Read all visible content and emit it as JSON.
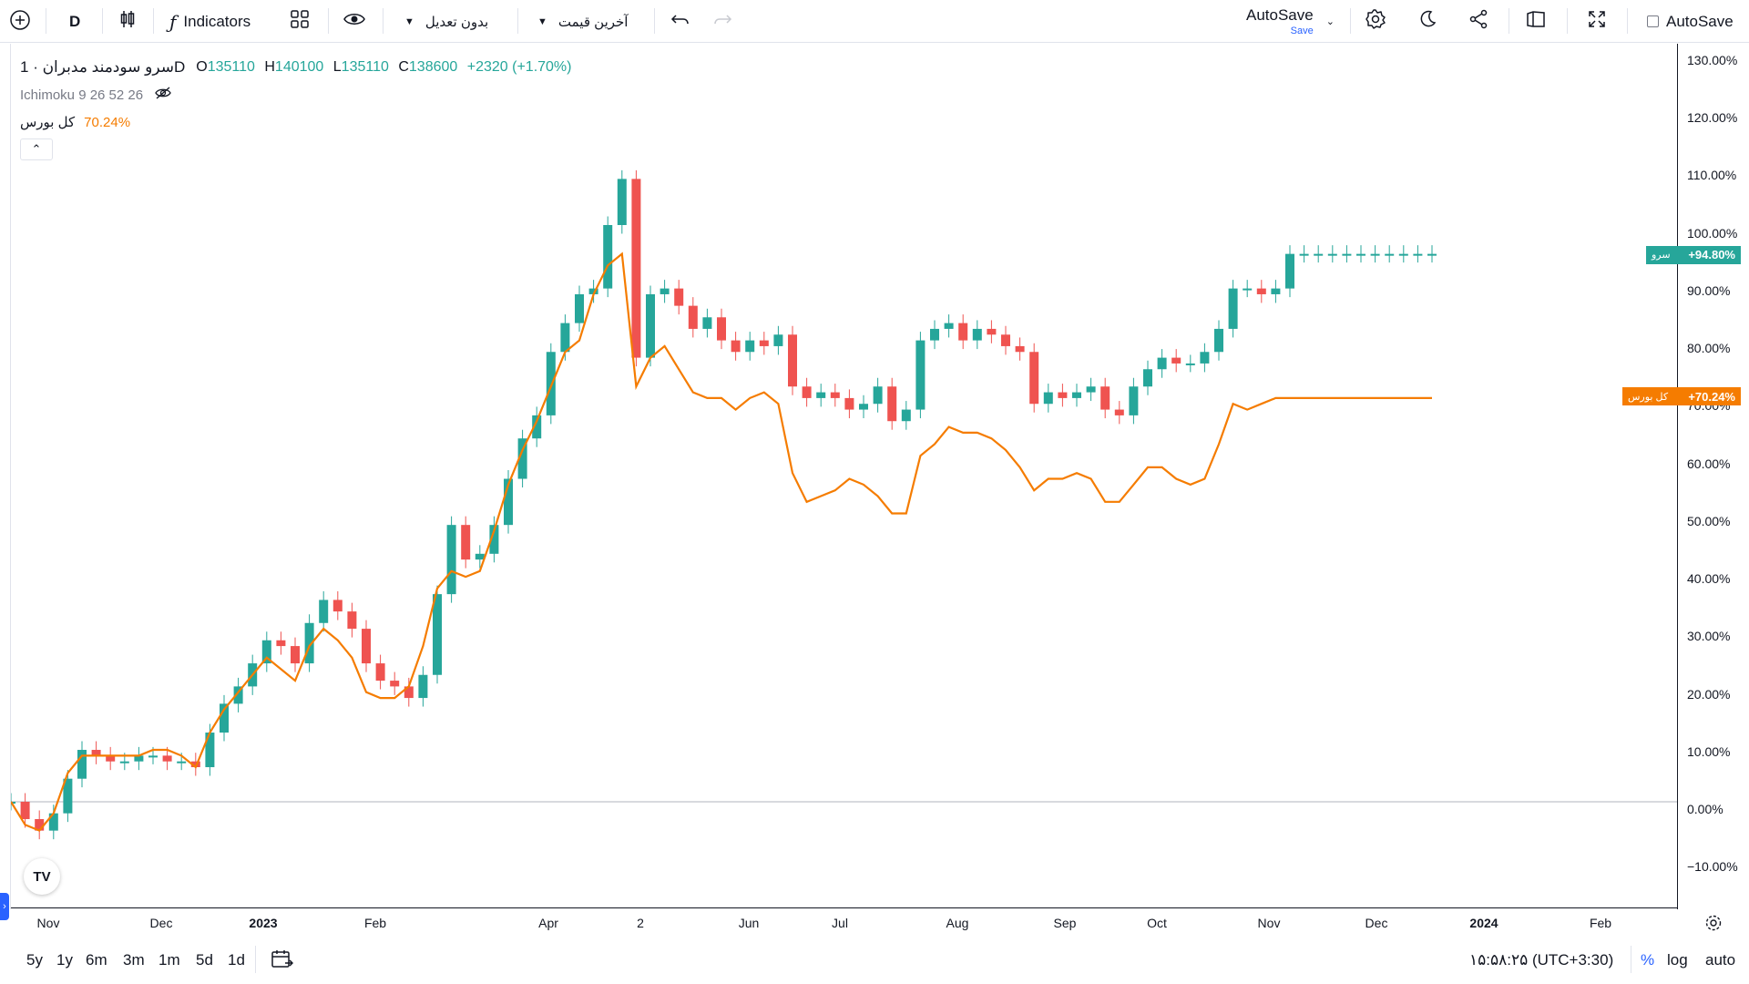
{
  "toolbar": {
    "interval": "D",
    "indicators_label": "Indicators",
    "adjustment_dropdown": "بدون تعدیل",
    "price_type_dropdown": "آخرین قیمت",
    "autosave_title": "AutoSave",
    "autosave_sub": "Save",
    "autosave_checkbox_label": "AutoSave"
  },
  "legend": {
    "symbol": "سرو سودمند مدبران · 1D",
    "open_label": "O",
    "open": "135110",
    "high_label": "H",
    "high": "140100",
    "low_label": "L",
    "low": "135110",
    "close_label": "C",
    "close": "138600",
    "change": "+2320 (+1.70%)",
    "indicator": "Ichimoku 9 26 52 26",
    "compare_label": "کل بورس",
    "compare_value": "70.24%"
  },
  "chart_data": {
    "type": "line",
    "title": "",
    "y_scale": "percent",
    "ylim": [
      -13,
      131
    ],
    "y_ticks": [
      "130.00%",
      "120.00%",
      "110.00%",
      "100.00%",
      "90.00%",
      "80.00%",
      "70.00%",
      "60.00%",
      "50.00%",
      "40.00%",
      "30.00%",
      "20.00%",
      "10.00%",
      "0.00%",
      "−10.00%"
    ],
    "y_tick_values": [
      130,
      120,
      110,
      100,
      90,
      80,
      70,
      60,
      50,
      40,
      30,
      20,
      10,
      0,
      -10
    ],
    "x_ticks": [
      "Nov",
      "Dec",
      "2023",
      "Feb",
      "Apr",
      "2",
      "Jun",
      "Jul",
      "Aug",
      "Sep",
      "Oct",
      "Nov",
      "Dec",
      "2024",
      "Feb"
    ],
    "series": [
      {
        "name": "سرو",
        "style": "candlestick",
        "color_up": "#26a69a",
        "color_down": "#ef5350",
        "last_value": "+94.80%",
        "x": [
          0,
          8,
          16,
          24,
          32,
          40,
          48,
          56,
          64,
          72,
          80,
          88,
          96,
          104,
          112,
          120,
          128,
          136,
          144,
          152,
          160,
          168,
          176,
          184,
          192,
          200,
          208,
          216,
          224,
          232,
          240,
          248,
          256,
          264,
          272,
          280,
          288,
          296,
          304,
          312,
          320,
          328,
          336,
          344,
          352,
          360,
          368,
          376,
          384,
          392,
          400,
          408,
          416,
          424,
          432,
          440,
          448,
          456,
          464,
          472,
          480,
          488,
          496,
          504,
          512,
          520,
          528,
          536,
          544,
          552,
          560,
          568,
          576,
          584,
          592,
          600,
          608,
          616,
          624,
          632,
          640,
          648,
          656,
          664,
          672,
          680,
          688,
          696,
          704,
          712,
          720,
          728,
          736,
          744,
          752,
          760,
          768,
          776,
          784,
          792,
          800
        ],
        "values": [
          0,
          -3,
          -5,
          -2,
          4,
          9,
          8,
          7,
          7,
          8,
          8,
          7,
          7,
          6,
          12,
          17,
          20,
          24,
          28,
          27,
          24,
          31,
          35,
          33,
          30,
          24,
          21,
          20,
          18,
          22,
          36,
          48,
          42,
          43,
          48,
          56,
          63,
          67,
          78,
          83,
          88,
          89,
          100,
          108,
          77,
          88,
          89,
          86,
          82,
          84,
          80,
          78,
          80,
          79,
          81,
          72,
          70,
          71,
          70,
          68,
          69,
          72,
          66,
          68,
          80,
          82,
          83,
          80,
          82,
          81,
          79,
          78,
          69,
          71,
          70,
          71,
          72,
          68,
          67,
          72,
          75,
          77,
          76,
          76,
          78,
          82,
          89,
          89,
          88,
          89,
          95,
          95,
          95,
          95,
          95,
          95,
          95,
          95,
          95,
          95,
          95
        ]
      },
      {
        "name": "کل بورس",
        "style": "line",
        "color": "#f57c00",
        "last_value": "+70.24%",
        "x": [
          0,
          8,
          16,
          24,
          32,
          40,
          48,
          56,
          64,
          72,
          80,
          88,
          96,
          104,
          112,
          120,
          128,
          136,
          144,
          152,
          160,
          168,
          176,
          184,
          192,
          200,
          208,
          216,
          224,
          232,
          240,
          248,
          256,
          264,
          272,
          280,
          288,
          296,
          304,
          312,
          320,
          328,
          336,
          344,
          352,
          360,
          368,
          376,
          384,
          392,
          400,
          408,
          416,
          424,
          432,
          440,
          448,
          456,
          464,
          472,
          480,
          488,
          496,
          504,
          512,
          520,
          528,
          536,
          544,
          552,
          560,
          568,
          576,
          584,
          592,
          600,
          608,
          616,
          624,
          632,
          640,
          648,
          656,
          664,
          672,
          680,
          688,
          696,
          704,
          712,
          720,
          728,
          736,
          744,
          752,
          760,
          768,
          776,
          784,
          792,
          800
        ],
        "values": [
          0,
          -4,
          -5,
          -2,
          5,
          8,
          8,
          8,
          8,
          8,
          9,
          9,
          8,
          6,
          12,
          16,
          19,
          22,
          25,
          23,
          21,
          27,
          30,
          28,
          25,
          19,
          18,
          18,
          20,
          27,
          37,
          40,
          39,
          40,
          47,
          55,
          61,
          66,
          72,
          78,
          80,
          88,
          93,
          95,
          72,
          77,
          79,
          75,
          71,
          70,
          70,
          68,
          70,
          71,
          69,
          57,
          52,
          53,
          54,
          56,
          55,
          53,
          50,
          50,
          60,
          62,
          65,
          64,
          64,
          63,
          61,
          58,
          54,
          56,
          56,
          57,
          56,
          52,
          52,
          55,
          58,
          58,
          56,
          55,
          56,
          62,
          69,
          68,
          69,
          70,
          70,
          70,
          70,
          70,
          70,
          70,
          70,
          70,
          70,
          70,
          70
        ]
      }
    ],
    "grid": false,
    "legend_position": "top-left"
  },
  "badges": {
    "main_name": "سرو",
    "main_value": "+94.80%",
    "main_color": "#26a69a",
    "compare_name": "کل بورس",
    "compare_value": "+70.24%",
    "compare_color": "#f57c00"
  },
  "bottom": {
    "ranges": [
      "5y",
      "1y",
      "6m",
      "3m",
      "1m",
      "5d",
      "1d"
    ],
    "clock": "۱۵:۵۸:۲۵ (UTC+3:30)",
    "percent": "%",
    "log": "log",
    "auto": "auto"
  },
  "logo_text": "TV"
}
